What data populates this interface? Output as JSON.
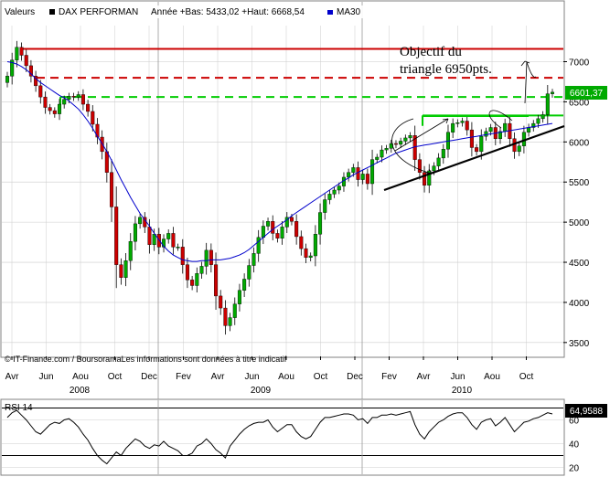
{
  "header": {
    "label": "Valeurs",
    "instrument": "DAX PERFORMAN",
    "stats": "Année +Bas: 5433,02 +Haut: 6668,54",
    "ma_label": "MA30"
  },
  "colors": {
    "up": "#00aa00",
    "down": "#cc0000",
    "ma": "#0000cc",
    "resistance": "#cc0000",
    "support": "#00cc00",
    "grid": "#cccccc",
    "price_badge": "#00aa00"
  },
  "annotation": {
    "line1": "Objectif du",
    "line2": "triangle 6950pts."
  },
  "current_price": {
    "label": "6601,37",
    "value": 6601.37
  },
  "rsi": {
    "label": "RSI 14",
    "value_label": "64,9588",
    "value": 64.9588
  },
  "footer": {
    "copyright": "© IT-Finance.com / BoursoramaLes informations sont données à titre indicatif"
  },
  "chart_data": [
    {
      "type": "candlestick",
      "title": "DAX PERFORMAN",
      "period": "weekly",
      "ylim": [
        3350,
        7450
      ],
      "yticks": [
        "3500",
        "4000",
        "4500",
        "5000",
        "5500",
        "6000",
        "6500",
        "7000"
      ],
      "ytick_values": [
        3500,
        4000,
        4500,
        5000,
        5500,
        6000,
        6500,
        7000
      ],
      "month_labels": [
        "Avr",
        "Jun",
        "Aou",
        "Oct",
        "Dec",
        "Fev",
        "Avr",
        "Jun",
        "Aou",
        "Oct",
        "Dec",
        "Fev",
        "Avr",
        "Jun",
        "Aou",
        "Oct"
      ],
      "year_labels": [
        "2008",
        "2009",
        "2010"
      ],
      "close_series": [
        6820,
        7020,
        7180,
        7080,
        6950,
        6820,
        6700,
        6560,
        6430,
        6390,
        6350,
        6470,
        6530,
        6570,
        6560,
        6590,
        6470,
        6380,
        6220,
        6060,
        5880,
        5620,
        5190,
        4470,
        4310,
        4520,
        4760,
        4980,
        5060,
        4940,
        4720,
        4850,
        4690,
        4790,
        4860,
        4690,
        4690,
        4470,
        4280,
        4210,
        4360,
        4450,
        4650,
        4470,
        4080,
        3930,
        3710,
        3810,
        3980,
        4150,
        4290,
        4460,
        4610,
        4810,
        4950,
        5010,
        4860,
        4800,
        4940,
        5060,
        5010,
        4820,
        4670,
        4560,
        4580,
        4850,
        5120,
        5280,
        5350,
        5400,
        5450,
        5560,
        5620,
        5680,
        5530,
        5600,
        5480,
        5780,
        5810,
        5900,
        5920,
        5980,
        5970,
        6010,
        6050,
        6080,
        5780,
        5620,
        5460,
        5640,
        5700,
        5800,
        5910,
        6120,
        6230,
        6240,
        6260,
        6150,
        5930,
        5880,
        6070,
        6130,
        6180,
        6040,
        6130,
        6230,
        6040,
        5880,
        5950,
        6120,
        6180,
        6230,
        6290,
        6340,
        6600,
        6620
      ],
      "ma30_series": [
        7000,
        6990,
        6970,
        6940,
        6900,
        6850,
        6790,
        6740,
        6700,
        6660,
        6620,
        6580,
        6550,
        6510,
        6460,
        6410,
        6340,
        6260,
        6170,
        6070,
        5980,
        5880,
        5770,
        5650,
        5530,
        5420,
        5310,
        5210,
        5110,
        5030,
        4950,
        4860,
        4780,
        4700,
        4640,
        4590,
        4560,
        4530,
        4520,
        4510,
        4510,
        4520,
        4520,
        4530,
        4530,
        4530,
        4540,
        4550,
        4570,
        4590,
        4620,
        4660,
        4710,
        4760,
        4810,
        4860,
        4910,
        4950,
        4990,
        5030,
        5080,
        5120,
        5160,
        5200,
        5240,
        5280,
        5320,
        5360,
        5400,
        5440,
        5480,
        5520,
        5550,
        5590,
        5620,
        5650,
        5680,
        5710,
        5740,
        5770,
        5800,
        5830,
        5860,
        5880,
        5900,
        5920,
        5940,
        5950,
        5960,
        5970,
        5980,
        5990,
        6000,
        6010,
        6020,
        6030,
        6040,
        6050,
        6060,
        6070,
        6080,
        6090,
        6100,
        6110,
        6120,
        6130,
        6140,
        6150,
        6160,
        6170,
        6180,
        6190,
        6200,
        6210,
        6220,
        6230
      ],
      "horizontal_levels": [
        {
          "value": 7160,
          "style": "solid",
          "color": "resistance"
        },
        {
          "value": 6800,
          "style": "dashed",
          "color": "resistance"
        },
        {
          "value": 6560,
          "style": "dashed",
          "color": "support"
        },
        {
          "value": 6330,
          "style": "solid",
          "color": "support"
        }
      ]
    },
    {
      "type": "line",
      "title": "RSI 14",
      "ylim": [
        15,
        75
      ],
      "yticks": [
        "20",
        "40",
        "60"
      ],
      "ytick_values": [
        20,
        40,
        60
      ],
      "levels": [
        30,
        70
      ],
      "values": [
        62,
        66,
        68,
        64,
        60,
        55,
        50,
        48,
        52,
        56,
        58,
        57,
        60,
        61,
        58,
        54,
        48,
        43,
        36,
        30,
        26,
        23,
        28,
        33,
        30,
        36,
        40,
        44,
        42,
        38,
        36,
        39,
        38,
        42,
        38,
        36,
        34,
        30,
        30,
        32,
        38,
        40,
        44,
        40,
        35,
        32,
        28,
        38,
        43,
        48,
        52,
        55,
        57,
        58,
        58,
        60,
        54,
        50,
        53,
        56,
        56,
        50,
        46,
        44,
        46,
        52,
        58,
        62,
        62,
        63,
        64,
        65,
        65,
        64,
        60,
        61,
        57,
        62,
        62,
        64,
        64,
        65,
        64,
        65,
        66,
        67,
        56,
        48,
        44,
        50,
        54,
        58,
        60,
        63,
        65,
        66,
        66,
        62,
        56,
        52,
        58,
        60,
        61,
        55,
        58,
        62,
        56,
        50,
        54,
        58,
        59,
        61,
        62,
        64,
        66,
        65
      ]
    }
  ]
}
